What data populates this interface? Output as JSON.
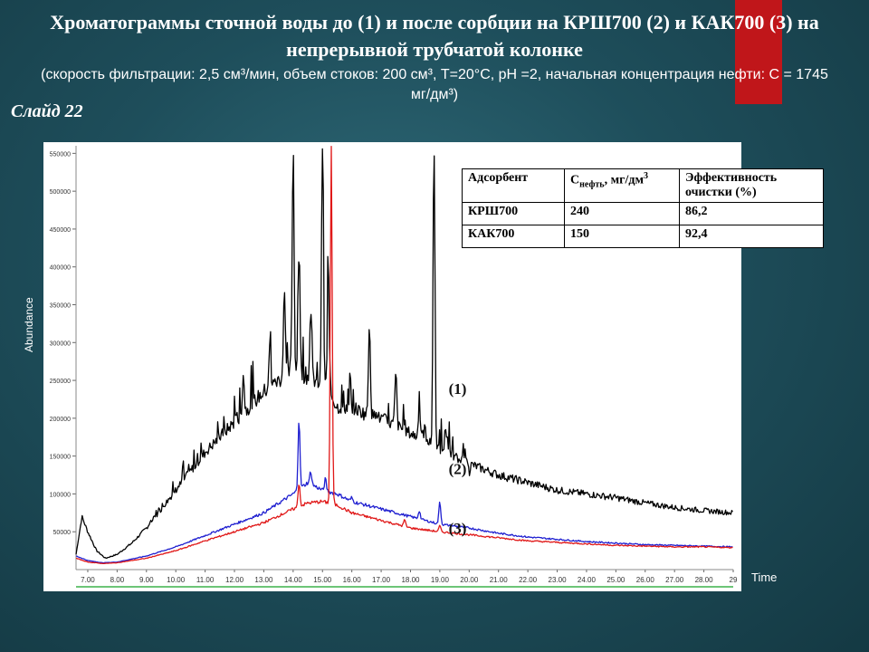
{
  "slide": {
    "title_main": "Хроматограммы сточной воды до (1) и после сорбции на КРШ700 (2) и КАК700 (3) на непрерывной трубчатой колонке",
    "title_params": "(скорость фильтрации: 2,5 см³/мин, объем стоков: 200 см³, T=20°C, pH =2, начальная концентрация нефти: C = 1745 мг/дм³)",
    "label": "Слайд 22",
    "accent_color": "#c0161a"
  },
  "table": {
    "headers": {
      "adsorbent": "Адсорбент",
      "conc_prefix": "C",
      "conc_sub": "нефть",
      "conc_suffix": ", мг/дм",
      "conc_sup": "3",
      "efficiency": "Эффективность очистки (%)"
    },
    "rows": [
      {
        "adsorbent": "КРШ700",
        "conc": "240",
        "eff": "86,2"
      },
      {
        "adsorbent": "КАК700",
        "conc": "150",
        "eff": "92,4"
      }
    ]
  },
  "chart_data": {
    "type": "line",
    "title": "",
    "xlabel": "Time",
    "ylabel": "Abundance",
    "xlim": [
      6.6,
      29.0
    ],
    "ylim": [
      0,
      560000
    ],
    "x_ticks": [
      "7.00",
      "8.00",
      "9.00",
      "10.00",
      "11.00",
      "12.00",
      "13.00",
      "14.00",
      "15.00",
      "16.00",
      "17.00",
      "18.00",
      "19.00",
      "20.00",
      "21.00",
      "22.00",
      "23.00",
      "24.00",
      "25.00",
      "26.00",
      "27.00",
      "28.00",
      "29"
    ],
    "y_ticks": [
      "50000",
      "100000",
      "150000",
      "200000",
      "250000",
      "300000",
      "350000",
      "400000",
      "450000",
      "500000",
      "550000"
    ],
    "series": [
      {
        "name": "(1)",
        "color": "#000000",
        "x": [
          6.6,
          6.8,
          7.0,
          7.3,
          7.6,
          8.0,
          8.5,
          9.0,
          9.5,
          10.0,
          10.5,
          11.0,
          11.5,
          12.0,
          12.5,
          13.0,
          13.5,
          14.0,
          14.5,
          15.0,
          15.3,
          15.5,
          16.0,
          16.5,
          17.0,
          17.5,
          18.0,
          18.5,
          19.0,
          19.5,
          20.0,
          21.0,
          22.0,
          23.0,
          24.0,
          25.0,
          26.0,
          27.0,
          28.0,
          29.0
        ],
        "y": [
          20000,
          70000,
          50000,
          25000,
          15000,
          20000,
          35000,
          55000,
          80000,
          105000,
          130000,
          155000,
          175000,
          195000,
          215000,
          235000,
          250000,
          265000,
          255000,
          245000,
          230000,
          215000,
          215000,
          205000,
          200000,
          190000,
          180000,
          170000,
          160000,
          150000,
          140000,
          125000,
          115000,
          105000,
          100000,
          95000,
          88000,
          82000,
          78000,
          75000
        ],
        "peaks": [
          [
            12.3,
            260000
          ],
          [
            13.2,
            290000
          ],
          [
            13.7,
            370000
          ],
          [
            14.0,
            560000
          ],
          [
            14.2,
            420000
          ],
          [
            14.6,
            340000
          ],
          [
            15.0,
            560000
          ],
          [
            15.2,
            390000
          ],
          [
            16.6,
            330000
          ],
          [
            17.5,
            260000
          ],
          [
            18.3,
            220000
          ],
          [
            18.8,
            560000
          ],
          [
            19.2,
            190000
          ],
          [
            19.6,
            145000
          ],
          [
            20.0,
            130000
          ]
        ]
      },
      {
        "name": "(2)",
        "color": "#1f1fd0",
        "x": [
          6.6,
          7.0,
          7.5,
          8.0,
          9.0,
          10.0,
          11.0,
          12.0,
          13.0,
          14.0,
          14.5,
          15.0,
          15.5,
          16.0,
          16.5,
          17.0,
          17.5,
          18.0,
          19.0,
          20.0,
          21.0,
          22.0,
          23.0,
          24.0,
          25.0,
          26.0,
          27.0,
          28.0,
          29.0
        ],
        "y": [
          18000,
          12000,
          9000,
          10000,
          18000,
          30000,
          45000,
          60000,
          75000,
          100000,
          115000,
          105000,
          100000,
          90000,
          85000,
          80000,
          75000,
          70000,
          60000,
          55000,
          48000,
          43000,
          40000,
          37000,
          35000,
          33000,
          32000,
          31000,
          30000
        ],
        "peaks": [
          [
            14.2,
            200000
          ],
          [
            14.6,
            130000
          ],
          [
            15.1,
            120000
          ],
          [
            16.0,
            95000
          ],
          [
            18.3,
            78000
          ],
          [
            19.0,
            90000
          ]
        ]
      },
      {
        "name": "(3)",
        "color": "#e01818",
        "x": [
          6.6,
          7.0,
          7.5,
          8.0,
          9.0,
          10.0,
          11.0,
          12.0,
          13.0,
          14.0,
          14.5,
          15.0,
          15.5,
          16.0,
          16.5,
          17.0,
          17.5,
          18.0,
          19.0,
          20.0,
          21.0,
          22.0,
          23.0,
          24.0,
          25.0,
          26.0,
          27.0,
          28.0,
          29.0
        ],
        "y": [
          15000,
          10000,
          8000,
          9000,
          15000,
          25000,
          38000,
          50000,
          62000,
          80000,
          88000,
          90000,
          85000,
          75000,
          70000,
          65000,
          60000,
          55000,
          50000,
          46000,
          42000,
          38000,
          36000,
          34000,
          32000,
          31000,
          30000,
          30000,
          29000
        ],
        "peaks": [
          [
            15.3,
            560000
          ],
          [
            14.2,
            115000
          ],
          [
            17.8,
            66000
          ],
          [
            19.0,
            58000
          ]
        ]
      }
    ]
  }
}
